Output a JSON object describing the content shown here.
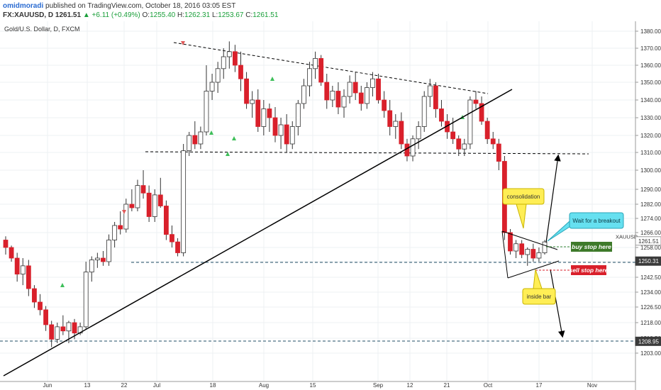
{
  "header": {
    "username": "omidmoradi",
    "published": "published on TradingView.com, October 18, 2016 03:05 EST",
    "symbol": "FX:XAUUSD, D",
    "last": "1261.51",
    "change_arrow": "▲",
    "change": "+6.11 (+0.49%)",
    "o_label": "O:",
    "o_value": "1255.40",
    "h_label": "H:",
    "h_value": "1262.31",
    "l_label": "L:",
    "l_value": "1253.67",
    "c_label": "C:",
    "c_value": "1261.51"
  },
  "chart_data": {
    "type": "candlestick",
    "title": "Gold/U.S. Dollar, D, FXCM",
    "symbol_tag": "XAUUSD",
    "x_tick_labels": [
      "Jun",
      "13",
      "22",
      "Jul",
      "18",
      "Aug",
      "15",
      "Sep",
      "12",
      "21",
      "Oct",
      "17",
      "Nov"
    ],
    "y_tick_labels": [
      "1380.00",
      "1370.00",
      "1360.00",
      "1350.00",
      "1340.00",
      "1330.00",
      "1320.00",
      "1310.00",
      "1300.00",
      "1290.00",
      "1282.00",
      "1274.00",
      "1266.00",
      "1258.00",
      "1250.00",
      "1242.50",
      "1234.00",
      "1226.50",
      "1218.00",
      "1210.50",
      "1203.00"
    ],
    "price_badges": [
      {
        "value": "1261.51",
        "y": 1261.51,
        "color": "#ffffff",
        "text_color": "#333333"
      },
      {
        "value": "1250.31",
        "y": 1250.31,
        "color": "#3a3a3a",
        "text_color": "#ffffff"
      },
      {
        "value": "1208.95",
        "y": 1208.95,
        "color": "#3a3a3a",
        "text_color": "#ffffff"
      }
    ],
    "annotations": [
      {
        "text": "consolidation",
        "kind": "callout-yellow"
      },
      {
        "text": "Wait for a breakout",
        "kind": "callout-cyan"
      },
      {
        "text": "buy stop here",
        "kind": "label-green"
      },
      {
        "text": "sell stop here",
        "kind": "label-red"
      },
      {
        "text": "inside bar",
        "kind": "callout-yellow"
      }
    ],
    "colors": {
      "up": "#ffffff",
      "down": "#d9202b",
      "wick": "#333333",
      "trendline": "#000000",
      "level": "#1f4e66"
    },
    "candles": [
      [
        1262,
        1264,
        1254,
        1258
      ],
      [
        1258,
        1259,
        1250,
        1252
      ],
      [
        1252,
        1255,
        1240,
        1244
      ],
      [
        1244,
        1252,
        1238,
        1248
      ],
      [
        1248,
        1251,
        1232,
        1236
      ],
      [
        1236,
        1238,
        1226,
        1229
      ],
      [
        1229,
        1233,
        1222,
        1225
      ],
      [
        1225,
        1227,
        1214,
        1217
      ],
      [
        1217,
        1219,
        1206,
        1210
      ],
      [
        1210,
        1218,
        1208,
        1216
      ],
      [
        1216,
        1222,
        1212,
        1214
      ],
      [
        1214,
        1219,
        1208,
        1218
      ],
      [
        1218,
        1220,
        1210,
        1213
      ],
      [
        1213,
        1218,
        1212,
        1216
      ],
      [
        1216,
        1250,
        1215,
        1245
      ],
      [
        1245,
        1253,
        1240,
        1251
      ],
      [
        1251,
        1255,
        1247,
        1252
      ],
      [
        1252,
        1256,
        1248,
        1250
      ],
      [
        1250,
        1265,
        1248,
        1262
      ],
      [
        1262,
        1272,
        1258,
        1270
      ],
      [
        1270,
        1278,
        1265,
        1268
      ],
      [
        1268,
        1285,
        1266,
        1282
      ],
      [
        1282,
        1290,
        1278,
        1280
      ],
      [
        1280,
        1295,
        1278,
        1292
      ],
      [
        1292,
        1300,
        1285,
        1288
      ],
      [
        1288,
        1292,
        1272,
        1275
      ],
      [
        1275,
        1290,
        1272,
        1287
      ],
      [
        1287,
        1296,
        1280,
        1281
      ],
      [
        1281,
        1284,
        1262,
        1265
      ],
      [
        1265,
        1270,
        1258,
        1261
      ],
      [
        1261,
        1263,
        1253,
        1255
      ],
      [
        1255,
        1315,
        1253,
        1311
      ],
      [
        1311,
        1322,
        1308,
        1320
      ],
      [
        1320,
        1328,
        1312,
        1315
      ],
      [
        1315,
        1325,
        1312,
        1322
      ],
      [
        1322,
        1360,
        1320,
        1345
      ],
      [
        1345,
        1355,
        1340,
        1350
      ],
      [
        1350,
        1362,
        1344,
        1358
      ],
      [
        1358,
        1370,
        1352,
        1365
      ],
      [
        1365,
        1374,
        1358,
        1368
      ],
      [
        1368,
        1372,
        1356,
        1360
      ],
      [
        1360,
        1368,
        1345,
        1352
      ],
      [
        1352,
        1356,
        1335,
        1338
      ],
      [
        1338,
        1345,
        1330,
        1340
      ],
      [
        1340,
        1346,
        1322,
        1325
      ],
      [
        1325,
        1340,
        1320,
        1335
      ],
      [
        1335,
        1338,
        1322,
        1330
      ],
      [
        1330,
        1336,
        1316,
        1320
      ],
      [
        1320,
        1330,
        1312,
        1326
      ],
      [
        1326,
        1332,
        1310,
        1315
      ],
      [
        1315,
        1328,
        1312,
        1325
      ],
      [
        1325,
        1340,
        1320,
        1338
      ],
      [
        1338,
        1352,
        1335,
        1348
      ],
      [
        1348,
        1362,
        1342,
        1358
      ],
      [
        1358,
        1368,
        1352,
        1364
      ],
      [
        1364,
        1366,
        1348,
        1350
      ],
      [
        1350,
        1355,
        1335,
        1340
      ],
      [
        1340,
        1348,
        1336,
        1345
      ],
      [
        1345,
        1350,
        1332,
        1336
      ],
      [
        1336,
        1346,
        1330,
        1342
      ],
      [
        1342,
        1354,
        1338,
        1350
      ],
      [
        1350,
        1356,
        1340,
        1344
      ],
      [
        1344,
        1348,
        1334,
        1338
      ],
      [
        1338,
        1350,
        1335,
        1347
      ],
      [
        1347,
        1356,
        1342,
        1352
      ],
      [
        1352,
        1355,
        1338,
        1340
      ],
      [
        1340,
        1345,
        1330,
        1334
      ],
      [
        1334,
        1340,
        1320,
        1325
      ],
      [
        1325,
        1332,
        1318,
        1328
      ],
      [
        1328,
        1333,
        1312,
        1315
      ],
      [
        1315,
        1318,
        1305,
        1308
      ],
      [
        1308,
        1320,
        1305,
        1318
      ],
      [
        1318,
        1328,
        1312,
        1325
      ],
      [
        1325,
        1345,
        1322,
        1342
      ],
      [
        1342,
        1352,
        1336,
        1348
      ],
      [
        1348,
        1350,
        1330,
        1335
      ],
      [
        1335,
        1340,
        1325,
        1328
      ],
      [
        1328,
        1332,
        1318,
        1322
      ],
      [
        1322,
        1330,
        1315,
        1318
      ],
      [
        1318,
        1320,
        1308,
        1312
      ],
      [
        1312,
        1318,
        1308,
        1315
      ],
      [
        1315,
        1342,
        1312,
        1340
      ],
      [
        1340,
        1345,
        1335,
        1338
      ],
      [
        1338,
        1342,
        1326,
        1328
      ],
      [
        1328,
        1330,
        1315,
        1318
      ],
      [
        1318,
        1322,
        1312,
        1315
      ],
      [
        1315,
        1318,
        1300,
        1305
      ],
      [
        1305,
        1308,
        1262,
        1266
      ],
      [
        1266,
        1268,
        1254,
        1256
      ],
      [
        1256,
        1262,
        1252,
        1260
      ],
      [
        1260,
        1262,
        1252,
        1254
      ],
      [
        1254,
        1258,
        1248,
        1257
      ],
      [
        1257,
        1260,
        1250,
        1252
      ],
      [
        1252,
        1258,
        1250,
        1255
      ],
      [
        1255,
        1262,
        1254,
        1261
      ]
    ]
  }
}
